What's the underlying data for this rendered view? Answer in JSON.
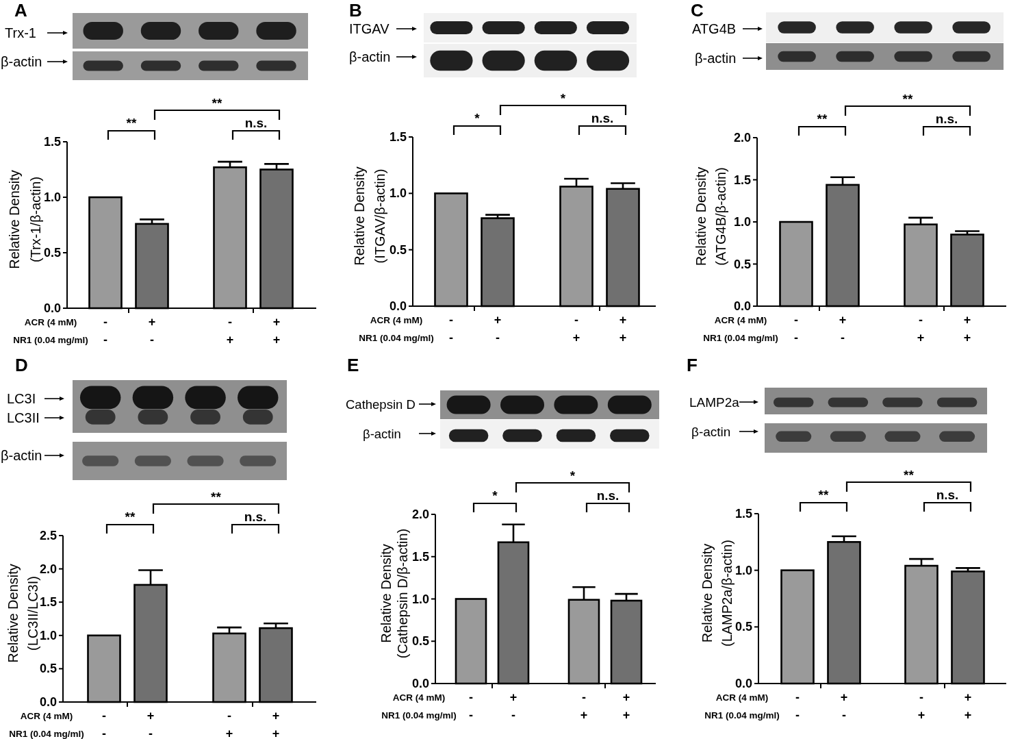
{
  "chart_data": [
    {
      "type": "bar",
      "title": "A",
      "ylabel": "Relative Density\n(Trx-1/β-actin)",
      "categories": [
        "-\n-",
        "+\n-",
        "-\n+",
        "+\n+"
      ],
      "values": [
        1.0,
        0.76,
        1.27,
        1.25
      ],
      "errors": [
        null,
        [
          0.76,
          0.8
        ],
        [
          1.27,
          1.32
        ],
        [
          1.25,
          1.3
        ]
      ],
      "colors": [
        "#9a9a9a",
        "#707070",
        "#9a9a9a",
        "#707070"
      ],
      "ylim": [
        0,
        1.5
      ],
      "yticks": [
        {
          "value": 0,
          "label": "0.0"
        },
        0.5,
        {
          "value": 1,
          "label": "1.0"
        },
        1.5
      ],
      "annotations": [
        "**",
        "**",
        "n.s.",
        "ACR (4 mM)",
        "NR1 (0.04 mg/ml)",
        "Trx-1",
        "β-actin"
      ]
    },
    {
      "type": "bar",
      "title": "B",
      "ylabel": "Relative Density\n(ITGAV/β-actin)",
      "categories": [
        "-\n-",
        "+\n-",
        "-\n+",
        "+\n+"
      ],
      "values": [
        1.0,
        0.78,
        1.06,
        1.04
      ],
      "errors": [
        null,
        [
          0.78,
          0.81
        ],
        [
          1.06,
          1.13
        ],
        [
          1.04,
          1.09
        ]
      ],
      "colors": [
        "#9a9a9a",
        "#707070",
        "#9a9a9a",
        "#707070"
      ],
      "ylim": [
        0,
        1.5
      ],
      "yticks": [
        {
          "value": 0,
          "label": "0.0"
        },
        0.5,
        {
          "value": 1,
          "label": "1.0"
        },
        1.5
      ],
      "annotations": [
        "*",
        "*",
        "n.s.",
        "ACR (4 mM)",
        "NR1 (0.04 mg/ml)",
        "ITGAV",
        "β-actin"
      ]
    },
    {
      "type": "bar",
      "title": "C",
      "ylabel": "Relative Density\n(ATG4B/β-actin)",
      "categories": [
        "-\n-",
        "+\n-",
        "-\n+",
        "+\n+"
      ],
      "values": [
        1.0,
        1.44,
        0.97,
        0.85
      ],
      "errors": [
        null,
        [
          1.44,
          1.53
        ],
        [
          0.97,
          1.05
        ],
        [
          0.85,
          0.89
        ]
      ],
      "colors": [
        "#9a9a9a",
        "#707070",
        "#9a9a9a",
        "#707070"
      ],
      "ylim": [
        0,
        2
      ],
      "yticks": [
        {
          "value": 0,
          "label": "0.0"
        },
        0.5,
        {
          "value": 1,
          "label": "1.0"
        },
        1.5,
        {
          "value": 2,
          "label": "2.0"
        }
      ],
      "annotations": [
        "**",
        "**",
        "n.s.",
        "ACR (4 mM)",
        "NR1 (0.04 mg/ml)",
        "ATG4B",
        "β-actin"
      ]
    },
    {
      "type": "bar",
      "title": "D",
      "ylabel": "Relative Density\n(LC3II/LC3I)",
      "categories": [
        "-\n-",
        "+\n-",
        "-\n+",
        "+\n+"
      ],
      "values": [
        1.0,
        1.76,
        1.03,
        1.11
      ],
      "errors": [
        null,
        [
          1.76,
          1.98
        ],
        [
          1.03,
          1.12
        ],
        [
          1.11,
          1.18
        ]
      ],
      "colors": [
        "#9a9a9a",
        "#707070",
        "#9a9a9a",
        "#707070"
      ],
      "ylim": [
        0,
        2.5
      ],
      "yticks": [
        {
          "value": 0,
          "label": "0.0"
        },
        0.5,
        {
          "value": 1,
          "label": "1.0"
        },
        1.5,
        {
          "value": 2,
          "label": "2.0"
        },
        2.5
      ],
      "annotations": [
        "**",
        "**",
        "n.s.",
        "ACR (4 mM)",
        "NR1 (0.04 mg/ml)",
        "LC3I",
        "LC3II",
        "β-actin"
      ]
    },
    {
      "type": "bar",
      "title": "E",
      "ylabel": "Relative Density\n(Cathepsin D/β-actin)",
      "categories": [
        "-\n-",
        "+\n-",
        "-\n+",
        "+\n+"
      ],
      "values": [
        1.0,
        1.67,
        0.99,
        0.98
      ],
      "errors": [
        null,
        [
          1.67,
          1.88
        ],
        [
          0.99,
          1.14
        ],
        [
          0.98,
          1.06
        ]
      ],
      "colors": [
        "#9a9a9a",
        "#707070",
        "#9a9a9a",
        "#707070"
      ],
      "ylim": [
        0,
        2
      ],
      "yticks": [
        {
          "value": 0,
          "label": "0.0"
        },
        0.5,
        {
          "value": 1,
          "label": "1.0"
        },
        1.5,
        {
          "value": 2,
          "label": "2.0"
        }
      ],
      "annotations": [
        "*",
        "*",
        "n.s.",
        "ACR (4 mM)",
        "NR1 (0.04 mg/ml)",
        "Cathepsin D",
        "β-actin"
      ]
    },
    {
      "type": "bar",
      "title": "F",
      "ylabel": "Relative Density\n(LAMP2a/β-actin)",
      "categories": [
        "-\n-",
        "+\n-",
        "-\n+",
        "+\n+"
      ],
      "values": [
        1.0,
        1.25,
        1.04,
        0.99
      ],
      "errors": [
        null,
        [
          1.25,
          1.3
        ],
        [
          1.04,
          1.1
        ],
        [
          0.99,
          1.02
        ]
      ],
      "colors": [
        "#9a9a9a",
        "#707070",
        "#9a9a9a",
        "#707070"
      ],
      "ylim": [
        0,
        1.5
      ],
      "yticks": [
        {
          "value": 0,
          "label": "0.0"
        },
        0.5,
        {
          "value": 1,
          "label": "1.0"
        },
        1.5
      ],
      "annotations": [
        "**",
        "**",
        "n.s.",
        "ACR (4 mM)",
        "NR1 (0.04 mg/ml)",
        "LAMP2a",
        "β-actin"
      ]
    }
  ]
}
